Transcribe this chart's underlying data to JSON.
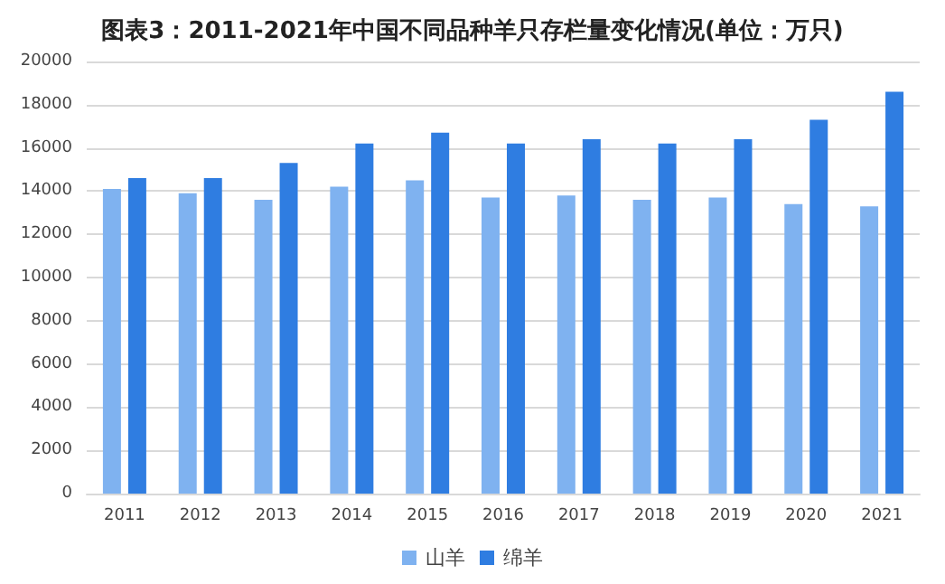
{
  "chart_data": {
    "type": "bar",
    "title": "图表3：2011-2021年中国不同品种羊只存栏量变化情况(单位：万只)",
    "categories": [
      "2011",
      "2012",
      "2013",
      "2014",
      "2015",
      "2016",
      "2017",
      "2018",
      "2019",
      "2020",
      "2021"
    ],
    "series": [
      {
        "name": "山羊",
        "color": "#7fb2f0",
        "values": [
          14100,
          13900,
          13600,
          14200,
          14500,
          13700,
          13800,
          13600,
          13700,
          13400,
          13300
        ]
      },
      {
        "name": "绵羊",
        "color": "#2f7de1",
        "values": [
          14600,
          14600,
          15300,
          16200,
          16700,
          16200,
          16400,
          16200,
          16400,
          17300,
          18600
        ]
      }
    ],
    "ylim": [
      0,
      20000
    ],
    "yticks": [
      0,
      2000,
      4000,
      6000,
      8000,
      10000,
      12000,
      14000,
      16000,
      18000,
      20000
    ],
    "grid": "y",
    "legend": "bottom"
  }
}
